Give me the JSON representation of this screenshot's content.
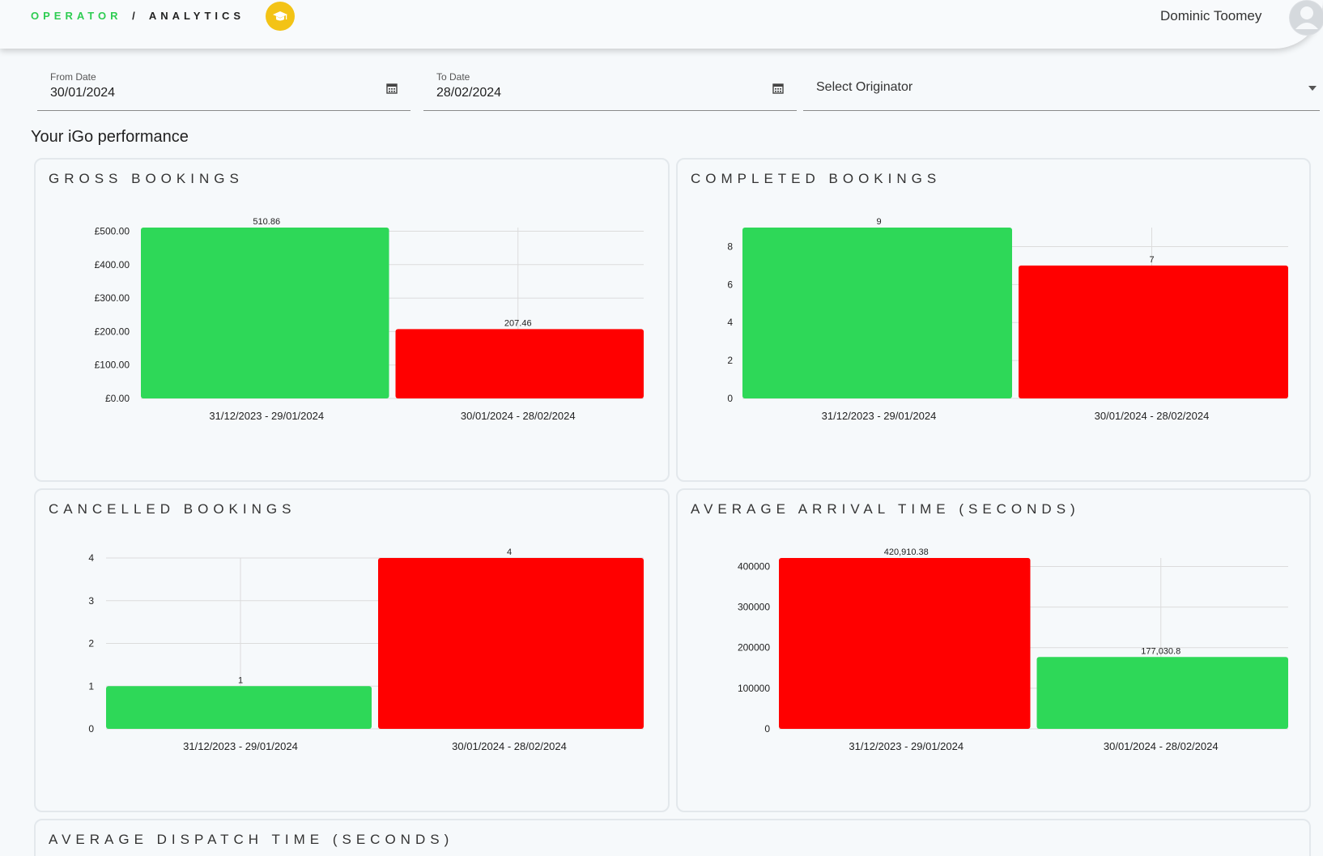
{
  "header": {
    "brand_primary": "OPERATOR",
    "brand_separator": "/",
    "brand_secondary": "ANALYTICS",
    "badge_icon": "graduation-cap-icon",
    "user_name": "Dominic Toomey",
    "avatar_icon": "user-avatar-icon"
  },
  "filters": {
    "from_label": "From Date",
    "from_value": "30/01/2024",
    "to_label": "To Date",
    "to_value": "28/02/2024",
    "originator_placeholder": "Select Originator"
  },
  "section_title": "Your iGo performance",
  "colors": {
    "green": "#2ed858",
    "red": "#ff0000",
    "brand_green": "#2ecc52",
    "badge": "#f3c316"
  },
  "cards": {
    "gross": {
      "title": "GROSS BOOKINGS"
    },
    "completed": {
      "title": "COMPLETED BOOKINGS"
    },
    "cancelled": {
      "title": "CANCELLED BOOKINGS"
    },
    "arrival": {
      "title": "AVERAGE ARRIVAL TIME (SECONDS)"
    },
    "dispatch": {
      "title": "AVERAGE DISPATCH TIME (SECONDS)"
    }
  },
  "chart_data": [
    {
      "id": "gross",
      "type": "bar",
      "categories": [
        "31/12/2023 - 29/01/2024",
        "30/01/2024 - 28/02/2024"
      ],
      "values": [
        510.86,
        207.46
      ],
      "data_labels": [
        "510.86",
        "207.46"
      ],
      "bar_colors": [
        "#2ed858",
        "#ff0000"
      ],
      "ylim": [
        0,
        510.86
      ],
      "yticks": [
        0,
        100,
        200,
        300,
        400,
        500
      ],
      "ytick_labels": [
        "£0.00",
        "£100.00",
        "£200.00",
        "£300.00",
        "£400.00",
        "£500.00"
      ],
      "title": "GROSS BOOKINGS"
    },
    {
      "id": "completed",
      "type": "bar",
      "categories": [
        "31/12/2023 - 29/01/2024",
        "30/01/2024 - 28/02/2024"
      ],
      "values": [
        9,
        7
      ],
      "data_labels": [
        "9",
        "7"
      ],
      "bar_colors": [
        "#2ed858",
        "#ff0000"
      ],
      "ylim": [
        0,
        9
      ],
      "yticks": [
        0,
        2,
        4,
        6,
        8
      ],
      "ytick_labels": [
        "0",
        "2",
        "4",
        "6",
        "8"
      ],
      "title": "COMPLETED BOOKINGS"
    },
    {
      "id": "cancelled",
      "type": "bar",
      "categories": [
        "31/12/2023 - 29/01/2024",
        "30/01/2024 - 28/02/2024"
      ],
      "values": [
        1,
        4
      ],
      "data_labels": [
        "1",
        "4"
      ],
      "bar_colors": [
        "#2ed858",
        "#ff0000"
      ],
      "ylim": [
        0,
        4
      ],
      "yticks": [
        0,
        1,
        2,
        3,
        4
      ],
      "ytick_labels": [
        "0",
        "1",
        "2",
        "3",
        "4"
      ],
      "title": "CANCELLED BOOKINGS"
    },
    {
      "id": "arrival",
      "type": "bar",
      "categories": [
        "31/12/2023 - 29/01/2024",
        "30/01/2024 - 28/02/2024"
      ],
      "values": [
        420910.38,
        177030.8
      ],
      "data_labels": [
        "420,910.38",
        "177,030.8"
      ],
      "bar_colors": [
        "#ff0000",
        "#2ed858"
      ],
      "ylim": [
        0,
        420910.38
      ],
      "yticks": [
        0,
        100000,
        200000,
        300000,
        400000
      ],
      "ytick_labels": [
        "0",
        "100000",
        "200000",
        "300000",
        "400000"
      ],
      "title": "AVERAGE ARRIVAL TIME (SECONDS)"
    }
  ]
}
